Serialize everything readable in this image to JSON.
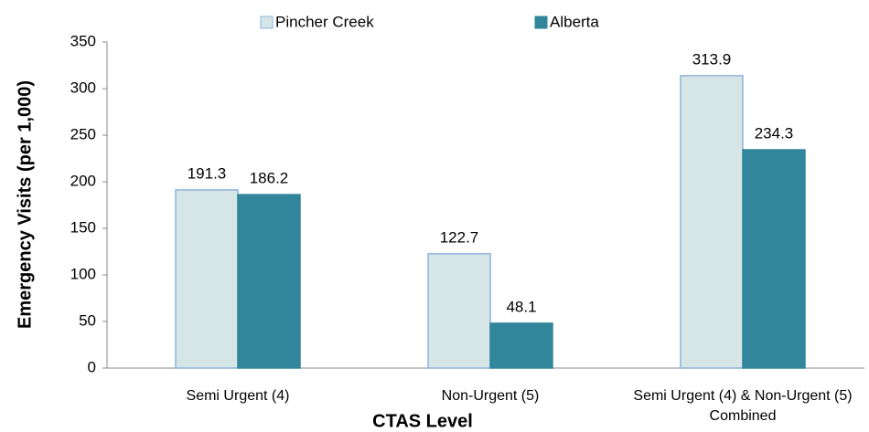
{
  "chart_data": {
    "type": "bar",
    "x_label": "CTAS Level",
    "y_label": "Emergency Visits (per 1,000)",
    "categories": [
      "Semi Urgent (4)",
      "Non-Urgent (5)",
      "Semi Urgent (4) & Non-Urgent (5) Combined"
    ],
    "series": [
      {
        "name": "Pincher Creek",
        "color": "#d6e6e6",
        "edge": "#8eb4dc",
        "values": [
          191.3,
          122.7,
          313.9
        ]
      },
      {
        "name": "Alberta",
        "color": "#31869b",
        "edge": "#31869b",
        "values": [
          186.2,
          48.1,
          234.3
        ]
      }
    ],
    "ylim": [
      0,
      350
    ],
    "yticks": [
      0,
      50,
      100,
      150,
      200,
      250,
      300,
      350
    ],
    "grid": false,
    "legend": "top"
  }
}
